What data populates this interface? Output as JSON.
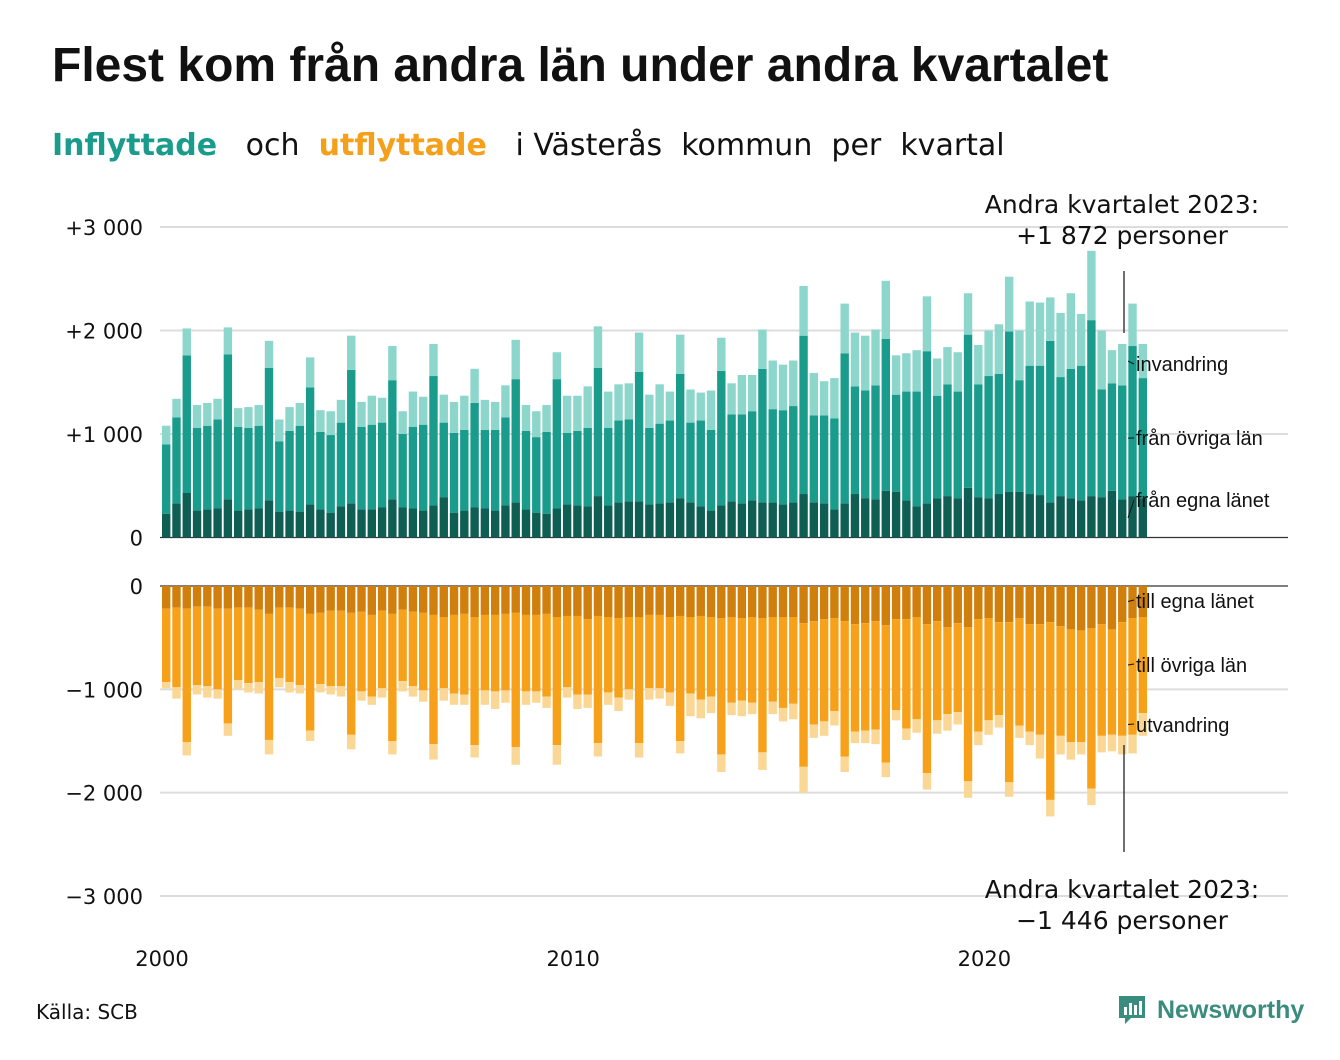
{
  "title": "Flest kom från andra län under andra kvartalet",
  "subtitle": {
    "in_word": "Inflyttade",
    "and_word": "och",
    "out_word": "utflyttade",
    "rest": "i Västerås  kommun  per  kvartal"
  },
  "source": "Källa: SCB",
  "brand": {
    "name": "Newsworthy",
    "icon": "newsworthy-logo-icon"
  },
  "colors": {
    "in_own": "#0f5e54",
    "in_other": "#1a9c8c",
    "in_immigration": "#8dd6cc",
    "out_own": "#d07e0c",
    "out_other": "#f7a11a",
    "out_emigration": "#fbd796",
    "grid": "#dddddd"
  },
  "annotations": {
    "top_line1": "Andra kvartalet 2023:",
    "top_line2": "+1 872 personer",
    "bottom_line1": "Andra kvartalet 2023:",
    "bottom_line2": "−1 446 personer"
  },
  "chart_data": [
    {
      "type": "bar",
      "stacked": true,
      "x_start": "2000 Q1",
      "x_end": "2023 Q2",
      "x_ticks": [
        "2000",
        "2010",
        "2020"
      ],
      "y_ticks": [
        "+3 000",
        "+2 000",
        "+1 000",
        "0"
      ],
      "ylim": [
        0,
        3000
      ],
      "grid": true,
      "series": [
        {
          "name": "från egna länet",
          "values": [
            230,
            330,
            430,
            260,
            270,
            280,
            370,
            260,
            270,
            280,
            360,
            250,
            260,
            250,
            320,
            270,
            240,
            300,
            330,
            270,
            270,
            290,
            370,
            290,
            280,
            260,
            310,
            390,
            240,
            260,
            290,
            280,
            260,
            310,
            340,
            270,
            240,
            230,
            280,
            320,
            310,
            300,
            400,
            310,
            340,
            350,
            350,
            320,
            330,
            340,
            380,
            340,
            300,
            260,
            310,
            350,
            330,
            360,
            340,
            340,
            320,
            340,
            420,
            340,
            330,
            270,
            330,
            420,
            380,
            370,
            450,
            440,
            360,
            300,
            330,
            380,
            400,
            380,
            480,
            390,
            380,
            420,
            440,
            440,
            420,
            410,
            340,
            400,
            380,
            360,
            400,
            390,
            450,
            370,
            400,
            380
          ]
        },
        {
          "name": "från övriga län",
          "values": [
            670,
            830,
            1330,
            800,
            810,
            860,
            1400,
            810,
            790,
            800,
            1280,
            680,
            770,
            830,
            1130,
            750,
            750,
            810,
            1290,
            800,
            820,
            820,
            1150,
            710,
            790,
            830,
            1250,
            720,
            770,
            780,
            1010,
            760,
            780,
            850,
            1190,
            760,
            730,
            790,
            1250,
            690,
            720,
            760,
            1240,
            750,
            790,
            790,
            1250,
            740,
            770,
            790,
            1200,
            770,
            830,
            780,
            1300,
            840,
            860,
            860,
            1290,
            900,
            910,
            930,
            1530,
            840,
            850,
            880,
            1450,
            1040,
            1040,
            1100,
            1470,
            940,
            1050,
            1110,
            1470,
            990,
            1080,
            1030,
            1480,
            1090,
            1180,
            1160,
            1550,
            1080,
            1240,
            1250,
            1560,
            1150,
            1250,
            1300,
            1700,
            1040,
            1040,
            1100,
            1450,
            1160
          ]
        },
        {
          "name": "invandring",
          "values": [
            180,
            180,
            260,
            220,
            220,
            200,
            260,
            180,
            200,
            200,
            260,
            210,
            230,
            220,
            290,
            210,
            230,
            220,
            330,
            240,
            280,
            240,
            330,
            220,
            340,
            270,
            310,
            270,
            300,
            330,
            330,
            290,
            270,
            310,
            380,
            250,
            250,
            260,
            260,
            360,
            340,
            400,
            400,
            350,
            350,
            350,
            380,
            320,
            380,
            280,
            380,
            320,
            270,
            380,
            320,
            300,
            380,
            350,
            380,
            470,
            440,
            440,
            480,
            410,
            330,
            390,
            480,
            520,
            530,
            540,
            560,
            380,
            370,
            400,
            530,
            360,
            360,
            380,
            400,
            380,
            440,
            480,
            530,
            480,
            620,
            610,
            420,
            620,
            730,
            500,
            670,
            570,
            320,
            400,
            410,
            330
          ]
        }
      ]
    },
    {
      "type": "bar",
      "stacked": true,
      "x_start": "2000 Q1",
      "x_end": "2023 Q2",
      "x_ticks": [
        "2000",
        "2010",
        "2020"
      ],
      "y_ticks": [
        "0",
        "−1 000",
        "−2 000",
        "−3 000"
      ],
      "ylim": [
        -3000,
        0
      ],
      "grid": true,
      "series": [
        {
          "name": "till egna länet",
          "values": [
            -220,
            -210,
            -220,
            -200,
            -200,
            -220,
            -220,
            -210,
            -210,
            -230,
            -270,
            -210,
            -210,
            -220,
            -270,
            -260,
            -240,
            -240,
            -260,
            -250,
            -280,
            -240,
            -270,
            -230,
            -250,
            -260,
            -280,
            -300,
            -280,
            -270,
            -300,
            -280,
            -280,
            -270,
            -260,
            -280,
            -280,
            -270,
            -300,
            -290,
            -290,
            -320,
            -290,
            -300,
            -310,
            -300,
            -300,
            -280,
            -280,
            -300,
            -290,
            -300,
            -290,
            -300,
            -310,
            -300,
            -310,
            -300,
            -310,
            -300,
            -300,
            -300,
            -360,
            -340,
            -320,
            -310,
            -340,
            -370,
            -360,
            -340,
            -380,
            -320,
            -320,
            -300,
            -370,
            -340,
            -400,
            -360,
            -400,
            -320,
            -310,
            -350,
            -350,
            -310,
            -370,
            -370,
            -350,
            -390,
            -420,
            -430,
            -410,
            -370,
            -420,
            -350,
            -310,
            -300
          ]
        },
        {
          "name": "till övriga län",
          "values": [
            -710,
            -770,
            -1290,
            -760,
            -770,
            -780,
            -1110,
            -700,
            -730,
            -700,
            -1220,
            -680,
            -720,
            -740,
            -1130,
            -690,
            -730,
            -730,
            -1180,
            -770,
            -790,
            -750,
            -1230,
            -690,
            -720,
            -750,
            -1250,
            -690,
            -760,
            -780,
            -1240,
            -730,
            -740,
            -740,
            -1300,
            -740,
            -740,
            -800,
            -1240,
            -690,
            -760,
            -730,
            -1230,
            -730,
            -770,
            -700,
            -1220,
            -710,
            -710,
            -730,
            -1210,
            -740,
            -810,
            -770,
            -1320,
            -830,
            -800,
            -830,
            -1300,
            -820,
            -880,
            -840,
            -1390,
            -1000,
            -990,
            -900,
            -1310,
            -1040,
            -1040,
            -1050,
            -1330,
            -880,
            -1060,
            -990,
            -1440,
            -960,
            -840,
            -860,
            -1490,
            -1090,
            -990,
            -900,
            -1550,
            -1040,
            -1040,
            -1070,
            -1720,
            -1060,
            -1090,
            -1080,
            -1550,
            -1080,
            -1020,
            -1100,
            -1130,
            -930
          ]
        },
        {
          "name": "utvandring",
          "values": [
            -60,
            -110,
            -130,
            -90,
            -110,
            -90,
            -120,
            -90,
            -90,
            -110,
            -140,
            -90,
            -100,
            -80,
            -100,
            -80,
            -80,
            -100,
            -140,
            -90,
            -80,
            -90,
            -130,
            -100,
            -100,
            -110,
            -150,
            -120,
            -110,
            -100,
            -120,
            -140,
            -170,
            -120,
            -170,
            -130,
            -110,
            -110,
            -190,
            -100,
            -140,
            -130,
            -130,
            -120,
            -130,
            -100,
            -140,
            -110,
            -100,
            -130,
            -120,
            -220,
            -180,
            -160,
            -170,
            -120,
            -150,
            -110,
            -170,
            -120,
            -130,
            -150,
            -250,
            -130,
            -140,
            -140,
            -150,
            -110,
            -120,
            -140,
            -140,
            -100,
            -110,
            -130,
            -160,
            -130,
            -160,
            -120,
            -160,
            -130,
            -140,
            -120,
            -140,
            -120,
            -130,
            -230,
            -160,
            -180,
            -170,
            -120,
            -160,
            -160,
            -160,
            -180,
            -180,
            -220
          ]
        }
      ]
    }
  ],
  "legend_top": [
    "invandring",
    "från övriga län",
    "från egna länet"
  ],
  "legend_bottom": [
    "till egna länet",
    "till övriga län",
    "utvandring"
  ]
}
